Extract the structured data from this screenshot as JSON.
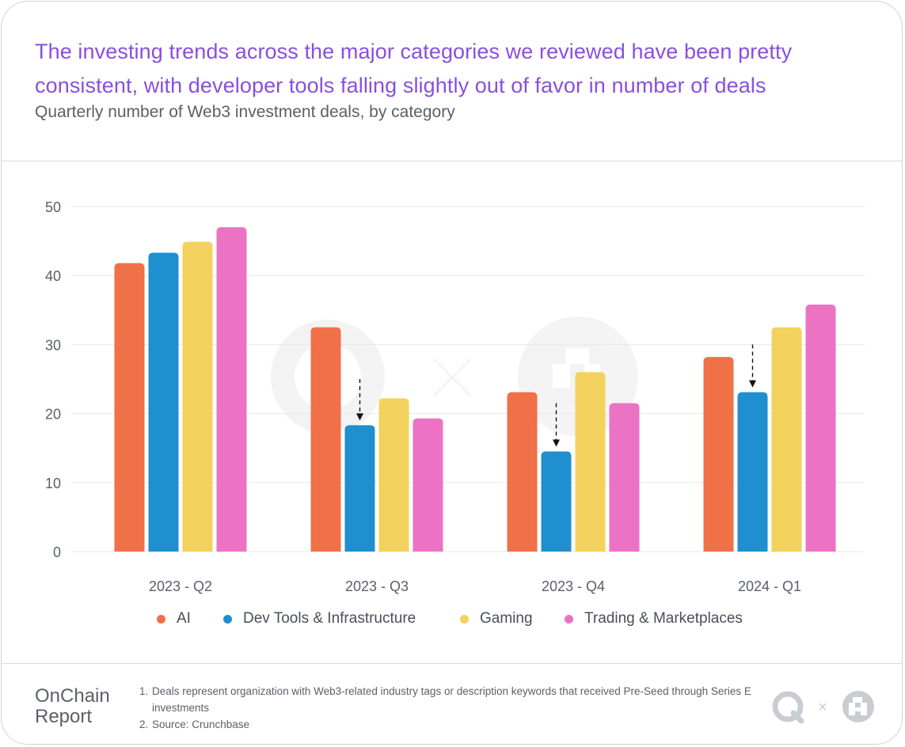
{
  "header": {
    "headline": "The investing trends across the major categories we reviewed have been pretty consistent, with developer tools falling slightly out of favor in number of deals",
    "subtitle": "Quarterly number of Web3 investment deals, by category"
  },
  "chart_data": {
    "type": "bar",
    "categories": [
      "2023 - Q2",
      "2023 - Q3",
      "2023 - Q4",
      "2024 - Q1"
    ],
    "series": [
      {
        "name": "AI",
        "color": "#f07048",
        "values": [
          41.8,
          32.5,
          23.1,
          28.2
        ]
      },
      {
        "name": "Dev Tools & Infrastructure",
        "color": "#1f8fd0",
        "values": [
          43.3,
          18.3,
          14.5,
          23.1
        ]
      },
      {
        "name": "Gaming",
        "color": "#f2d25c",
        "values": [
          44.9,
          22.2,
          26.0,
          32.5
        ]
      },
      {
        "name": "Trading & Marketplaces",
        "color": "#ec72c4",
        "values": [
          47.0,
          19.3,
          21.5,
          35.8
        ]
      }
    ],
    "ylim": [
      0,
      50
    ],
    "yticks": [
      0,
      10,
      20,
      30,
      40,
      50
    ],
    "grid": true,
    "legend": "bottom",
    "annotations": [
      {
        "type": "down-arrow",
        "category": "2023 - Q3",
        "series": "Dev Tools & Infrastructure",
        "from": 25
      },
      {
        "type": "down-arrow",
        "category": "2023 - Q4",
        "series": "Dev Tools & Infrastructure",
        "from": 21.5
      },
      {
        "type": "down-arrow",
        "category": "2024 - Q1",
        "series": "Dev Tools & Infrastructure",
        "from": 30
      }
    ]
  },
  "footer": {
    "brand_line1": "OnChain",
    "brand_line2": "Report",
    "notes": [
      {
        "num": "1.",
        "text": "Deals represent organization with Web3-related industry tags or description keywords that received Pre-Seed through Series E investments"
      },
      {
        "num": "2.",
        "text": "Source: Crunchbase"
      }
    ],
    "logo_separator": "×"
  },
  "icons": {
    "logo_left": "q-ring-logo-icon",
    "logo_right": "pixel-a-logo-icon"
  }
}
